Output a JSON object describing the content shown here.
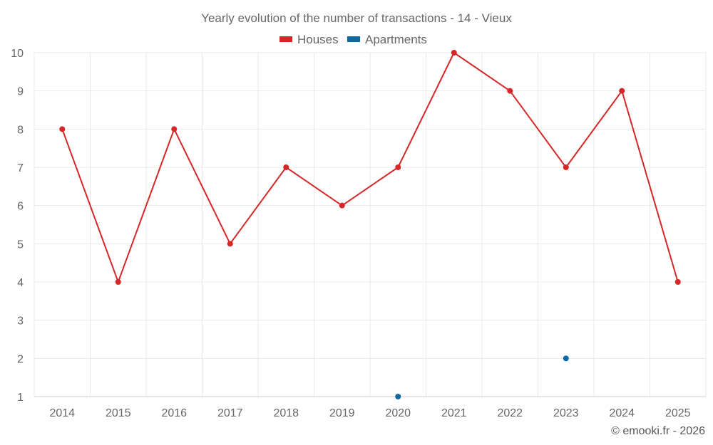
{
  "chart_data": {
    "type": "line",
    "title": "Yearly evolution of the number of transactions - 14 - Vieux",
    "x": [
      "2014",
      "2015",
      "2016",
      "2017",
      "2018",
      "2019",
      "2020",
      "2021",
      "2022",
      "2023",
      "2024",
      "2025"
    ],
    "series": [
      {
        "name": "Houses",
        "color": "#d62728",
        "values": [
          8,
          4,
          8,
          5,
          7,
          6,
          7,
          10,
          9,
          7,
          9,
          4
        ]
      },
      {
        "name": "Apartments",
        "color": "#0a6aa1",
        "values": [
          null,
          null,
          null,
          null,
          null,
          null,
          1,
          null,
          null,
          2,
          null,
          null
        ]
      }
    ],
    "ylim": [
      1,
      10
    ],
    "yticks": [
      1,
      2,
      3,
      4,
      5,
      6,
      7,
      8,
      9,
      10
    ],
    "grid": true,
    "legend_position": "top-center",
    "xlabel": "",
    "ylabel": ""
  },
  "credit": "© emooki.fr - 2026"
}
